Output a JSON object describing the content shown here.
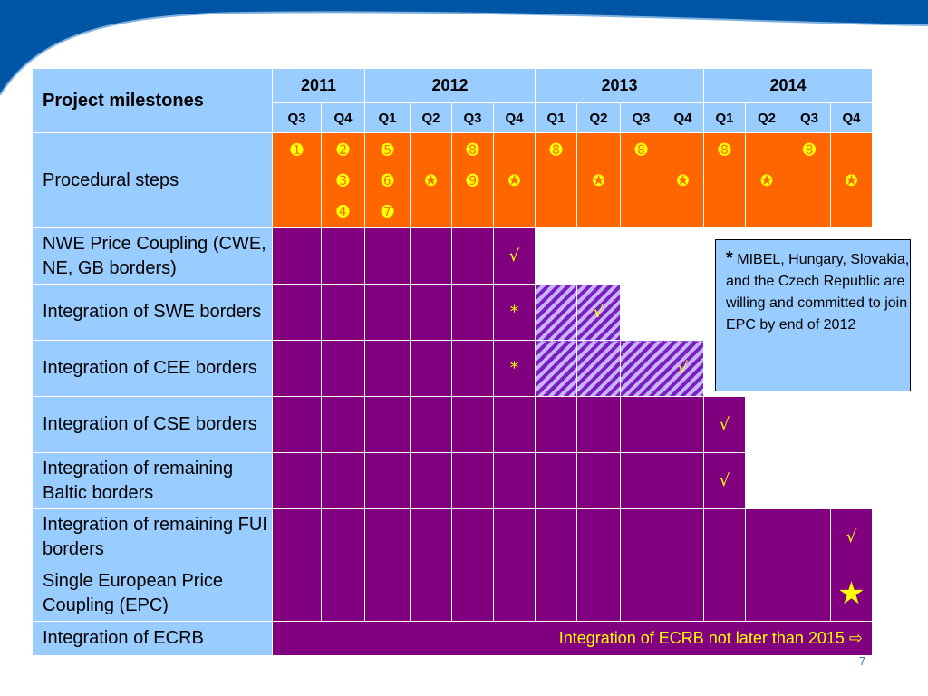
{
  "header": {
    "title": "Project milestones"
  },
  "years": [
    "2011",
    "2012",
    "2013",
    "2014"
  ],
  "quarters": [
    "Q3",
    "Q4",
    "Q1",
    "Q2",
    "Q3",
    "Q4",
    "Q1",
    "Q2",
    "Q3",
    "Q4",
    "Q1",
    "Q2",
    "Q3",
    "Q4"
  ],
  "procedural": {
    "label": "Procedural steps",
    "symbols": [
      [
        "➊"
      ],
      [
        "➋",
        "➌",
        "➍"
      ],
      [
        "➎",
        "➏",
        "➐"
      ],
      [
        "",
        "✪"
      ],
      [
        "➑",
        "➒"
      ],
      [
        "",
        "✪"
      ],
      [
        "➑"
      ],
      [
        "",
        "✪"
      ],
      [
        "➑"
      ],
      [
        "",
        "✪"
      ],
      [
        "➑"
      ],
      [
        "",
        "✪"
      ],
      [
        "➑"
      ],
      [
        "",
        "✪"
      ]
    ]
  },
  "rows": [
    {
      "label": "NWE Price Coupling (CWE, NE, GB borders)",
      "cells": "PPPPPM--------",
      "mark": "√",
      "mark_col": 5
    },
    {
      "label": "Integration of SWE borders",
      "cells": "PPPPPSHH------",
      "mark": "√",
      "mark_col": 7,
      "asterisk_col": 5,
      "asterisk": "*"
    },
    {
      "label": "Integration of CEE borders",
      "cells": "PPPPPSHHHH----",
      "mark": "√",
      "mark_col": 9,
      "asterisk_col": 5,
      "asterisk": "*"
    },
    {
      "label": "Integration of CSE borders",
      "cells": "PPPPPPPPPPM---",
      "mark": "√",
      "mark_col": 10
    },
    {
      "label": "Integration of remaining Baltic borders",
      "cells": "PPPPPPPPPPM---",
      "mark": "√",
      "mark_col": 10
    },
    {
      "label": "Integration of remaining FUI borders",
      "cells": "PPPPPPPPPPPPPM",
      "mark": "√",
      "mark_col": 13
    },
    {
      "label": "Single European Price Coupling (EPC)",
      "cells": "PPPPPPPPPPPPPM",
      "mark": "★",
      "mark_col": 13,
      "mark_big": true
    }
  ],
  "ecrb": {
    "label": "Integration of ECRB",
    "text": "Integration of ECRB not later than 2015 ⇨"
  },
  "note": {
    "asterisk": "*",
    "text": "MIBEL, Hungary, Slovakia, and the Czech Republic are willing and committed to join EPC by end of 2012"
  },
  "page_number": "7",
  "colors": {
    "header_bg": "#99ccff",
    "procedural_bg": "#ff6600",
    "bar_purple": "#800080",
    "mark_yellow": "#ffff00",
    "banner_blue": "#0055a4"
  }
}
